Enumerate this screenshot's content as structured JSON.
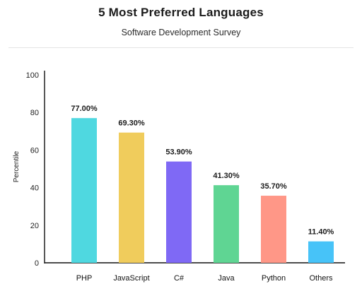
{
  "chart_data": {
    "type": "bar",
    "title": "5 Most Preferred Languages",
    "subtitle": "Software Development Survey",
    "xlabel": "",
    "ylabel": "Percentile",
    "ylim": [
      0,
      100
    ],
    "yticks": [
      0,
      20,
      40,
      60,
      80,
      100
    ],
    "grid": false,
    "categories": [
      "PHP",
      "JavaScript",
      "C#",
      "Java",
      "Python",
      "Others"
    ],
    "values": [
      77.0,
      69.3,
      53.9,
      41.3,
      35.7,
      11.4
    ],
    "value_labels": [
      "77.00%",
      "69.30%",
      "53.90%",
      "41.30%",
      "35.70%",
      "11.40%"
    ],
    "colors": [
      "#4fd8e0",
      "#f0cc5c",
      "#7f69f5",
      "#5fd593",
      "#ff9787",
      "#47c3f8"
    ]
  }
}
